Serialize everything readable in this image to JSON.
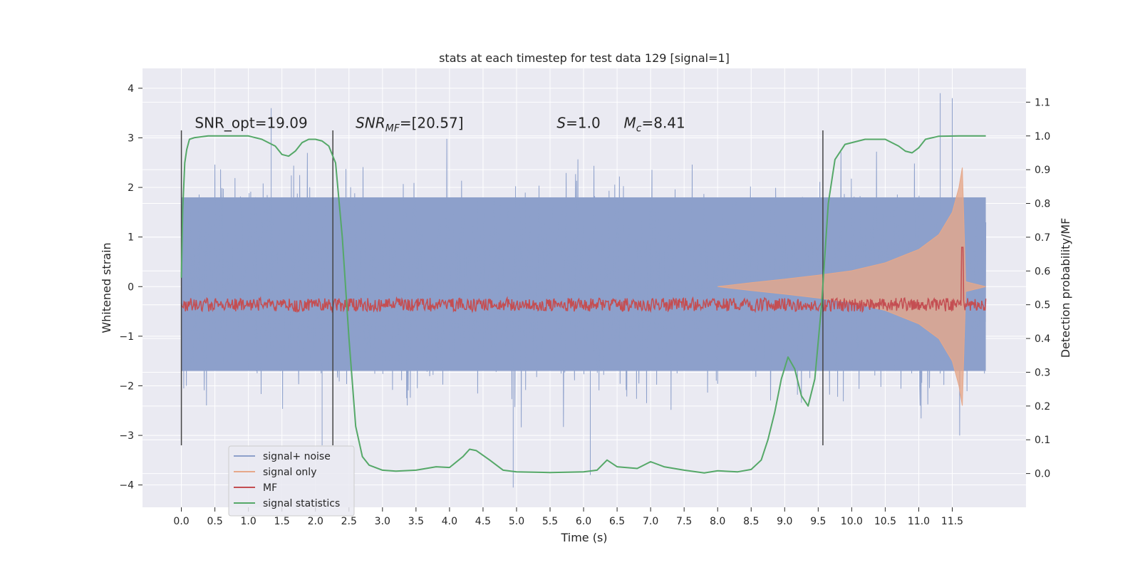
{
  "chart_data": {
    "type": "line",
    "title": "stats at each timestep for test data 129 [signal=1]",
    "xlabel": "Time (s)",
    "ylabel": "Whitened strain",
    "y2label": "Detection probability/MF",
    "xlim": [
      -0.58,
      12.6
    ],
    "ylim": [
      -4.45,
      4.4
    ],
    "y2lim": [
      -0.1,
      1.2
    ],
    "x_ticks": [
      0.0,
      0.5,
      1.0,
      1.5,
      2.0,
      2.5,
      3.0,
      3.5,
      4.0,
      4.5,
      5.0,
      5.5,
      6.0,
      6.5,
      7.0,
      7.5,
      8.0,
      8.5,
      9.0,
      9.5,
      10.0,
      10.5,
      11.0,
      11.5
    ],
    "x_tick_labels": [
      "0.0",
      "0.5",
      "1.0",
      "1.5",
      "2.0",
      "2.5",
      "3.0",
      "3.5",
      "4.0",
      "4.5",
      "5.0",
      "5.5",
      "6.0",
      "6.5",
      "7.0",
      "7.5",
      "8.0",
      "8.5",
      "9.0",
      "9.5",
      "10.0",
      "10.5",
      "11.0",
      "11.5"
    ],
    "y_ticks": [
      -4,
      -3,
      -2,
      -1,
      0,
      1,
      2,
      3,
      4
    ],
    "y_tick_labels": [
      "−4",
      "−3",
      "−2",
      "−1",
      "0",
      "1",
      "2",
      "3",
      "4"
    ],
    "y2_ticks": [
      0.0,
      0.1,
      0.2,
      0.3,
      0.4,
      0.5,
      0.6,
      0.7,
      0.8,
      0.9,
      1.0,
      1.1
    ],
    "y2_tick_labels": [
      "0.0",
      "0.1",
      "0.2",
      "0.3",
      "0.4",
      "0.5",
      "0.6",
      "0.7",
      "0.8",
      "0.9",
      "1.0",
      "1.1"
    ],
    "grid": true,
    "legend_position": "lower-left",
    "vlines_x": [
      0.0,
      2.26,
      9.57
    ],
    "vlines_y_range": [
      -3.2,
      3.15
    ],
    "annotations": [
      {
        "text": "SNR_opt=19.09",
        "x": 0.2,
        "y": 3.2
      },
      {
        "text": "SNR_MF=[20.57]",
        "x": 2.6,
        "y": 3.2
      },
      {
        "text": "S=1.0",
        "x": 5.6,
        "y": 3.2
      },
      {
        "text": "M_c=8.41",
        "x": 6.6,
        "y": 3.2
      }
    ],
    "series": [
      {
        "name": "signal+ noise",
        "color": "#8da0cb",
        "axis": "left",
        "kind": "noise",
        "x_range": [
          0.0,
          12.0
        ],
        "band": [
          -1.7,
          1.8
        ],
        "max_peak": 3.9,
        "min_peak": -4.1
      },
      {
        "name": "signal only",
        "color": "#e6a88a",
        "axis": "left",
        "kind": "chirp",
        "envelope": [
          [
            8.0,
            0.0
          ],
          [
            8.5,
            0.08
          ],
          [
            9.0,
            0.15
          ],
          [
            9.5,
            0.23
          ],
          [
            10.0,
            0.32
          ],
          [
            10.5,
            0.48
          ],
          [
            11.0,
            0.75
          ],
          [
            11.3,
            1.05
          ],
          [
            11.5,
            1.5
          ],
          [
            11.6,
            2.0
          ],
          [
            11.65,
            2.4
          ],
          [
            11.7,
            0.1
          ],
          [
            12.0,
            0.0
          ]
        ]
      },
      {
        "name": "MF",
        "color": "#c44e52",
        "axis": "right",
        "kind": "mf",
        "base": 0.5,
        "jitter": 0.02,
        "peak": {
          "x": 11.65,
          "y": 0.67
        }
      },
      {
        "name": "signal statistics",
        "color": "#55a868",
        "axis": "right",
        "kind": "line",
        "x": [
          0.0,
          0.02,
          0.05,
          0.08,
          0.12,
          0.2,
          0.4,
          0.8,
          1.0,
          1.2,
          1.4,
          1.5,
          1.6,
          1.7,
          1.8,
          1.9,
          2.0,
          2.1,
          2.2,
          2.3,
          2.4,
          2.5,
          2.6,
          2.7,
          2.8,
          3.0,
          3.2,
          3.5,
          3.8,
          4.0,
          4.2,
          4.3,
          4.4,
          4.6,
          4.8,
          5.0,
          5.5,
          6.0,
          6.2,
          6.35,
          6.5,
          6.8,
          7.0,
          7.2,
          7.5,
          7.8,
          8.0,
          8.3,
          8.5,
          8.65,
          8.75,
          8.85,
          8.95,
          9.05,
          9.15,
          9.25,
          9.35,
          9.45,
          9.55,
          9.65,
          9.75,
          9.9,
          10.2,
          10.5,
          10.7,
          10.8,
          10.9,
          11.0,
          11.1,
          11.3,
          11.6,
          11.9,
          12.0
        ],
        "y": [
          0.58,
          0.78,
          0.92,
          0.96,
          0.99,
          0.995,
          1.0,
          1.0,
          1.0,
          0.99,
          0.97,
          0.945,
          0.94,
          0.955,
          0.98,
          0.99,
          0.99,
          0.985,
          0.97,
          0.92,
          0.7,
          0.4,
          0.14,
          0.05,
          0.025,
          0.01,
          0.007,
          0.01,
          0.02,
          0.018,
          0.05,
          0.072,
          0.068,
          0.04,
          0.01,
          0.005,
          0.003,
          0.005,
          0.01,
          0.04,
          0.02,
          0.015,
          0.035,
          0.02,
          0.01,
          0.002,
          0.008,
          0.005,
          0.012,
          0.04,
          0.1,
          0.18,
          0.28,
          0.345,
          0.31,
          0.23,
          0.2,
          0.28,
          0.5,
          0.8,
          0.93,
          0.975,
          0.99,
          0.99,
          0.97,
          0.955,
          0.95,
          0.965,
          0.99,
          0.999,
          1.0,
          1.0,
          1.0
        ]
      }
    ]
  }
}
